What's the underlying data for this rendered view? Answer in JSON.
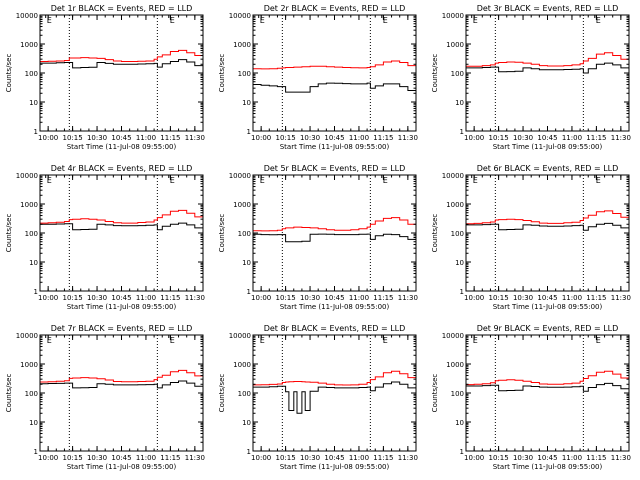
{
  "colors": {
    "events": "#000000",
    "lld": "#ff0000",
    "background": "#ffffff",
    "axis": "#000000"
  },
  "shared": {
    "xlabel": "Start Time (11-Jul-08 09:55:00)",
    "ylabel": "Counts/sec",
    "x_ticks": [
      "10:00",
      "10:15",
      "10:30",
      "10:45",
      "11:00",
      "11:15",
      "11:30"
    ],
    "y_ticks": [
      "1",
      "10",
      "100",
      "1000",
      "10000"
    ],
    "marker_label": "E",
    "marker_times": [
      "09:58:30",
      "11:14:00"
    ],
    "dotted_line_times": [
      "10:13:00",
      "11:07:00"
    ]
  },
  "chart_data": [
    {
      "type": "line",
      "title": "Det 1r BLACK = Events, RED = LLD",
      "xlim": [
        "09:55",
        "11:35"
      ],
      "ylim": [
        1,
        10000
      ],
      "yscale": "log",
      "x": [
        "09:55",
        "10:00",
        "10:05",
        "10:10",
        "10:13",
        "10:15",
        "10:20",
        "10:25",
        "10:30",
        "10:35",
        "10:40",
        "10:45",
        "10:50",
        "10:55",
        "11:00",
        "11:05",
        "11:07",
        "11:10",
        "11:15",
        "11:20",
        "11:25",
        "11:30",
        "11:35"
      ],
      "series": [
        {
          "name": "BLACK = Events",
          "values": [
            220,
            220,
            225,
            230,
            230,
            150,
            155,
            158,
            230,
            215,
            200,
            200,
            200,
            205,
            210,
            215,
            160,
            210,
            250,
            290,
            240,
            180,
            140
          ]
        },
        {
          "name": "RED = LLD",
          "values": [
            250,
            255,
            260,
            270,
            330,
            330,
            340,
            330,
            320,
            290,
            260,
            250,
            250,
            255,
            260,
            300,
            360,
            420,
            550,
            600,
            500,
            400,
            300
          ]
        }
      ]
    },
    {
      "type": "line",
      "title": "Det 2r BLACK = Events, RED = LLD",
      "xlim": [
        "09:55",
        "11:35"
      ],
      "ylim": [
        1,
        10000
      ],
      "yscale": "log",
      "x": [
        "09:55",
        "10:00",
        "10:05",
        "10:10",
        "10:13",
        "10:15",
        "10:20",
        "10:25",
        "10:30",
        "10:35",
        "10:40",
        "10:45",
        "10:50",
        "10:55",
        "11:00",
        "11:05",
        "11:07",
        "11:10",
        "11:15",
        "11:20",
        "11:25",
        "11:30",
        "11:35"
      ],
      "series": [
        {
          "name": "BLACK = Events",
          "values": [
            40,
            38,
            36,
            34,
            34,
            22,
            22,
            22,
            34,
            42,
            45,
            44,
            43,
            42,
            42,
            45,
            30,
            36,
            42,
            42,
            34,
            25,
            16
          ]
        },
        {
          "name": "RED = LLD",
          "values": [
            140,
            138,
            140,
            145,
            150,
            155,
            160,
            165,
            170,
            170,
            165,
            160,
            155,
            152,
            150,
            155,
            165,
            190,
            240,
            260,
            230,
            180,
            140
          ]
        }
      ]
    },
    {
      "type": "line",
      "title": "Det 3r BLACK = Events, RED = LLD",
      "xlim": [
        "09:55",
        "11:35"
      ],
      "ylim": [
        1,
        10000
      ],
      "yscale": "log",
      "x": [
        "09:55",
        "10:00",
        "10:05",
        "10:10",
        "10:13",
        "10:15",
        "10:20",
        "10:25",
        "10:30",
        "10:35",
        "10:40",
        "10:45",
        "10:50",
        "10:55",
        "11:00",
        "11:05",
        "11:07",
        "11:10",
        "11:15",
        "11:20",
        "11:25",
        "11:30",
        "11:35"
      ],
      "series": [
        {
          "name": "BLACK = Events",
          "values": [
            150,
            150,
            155,
            160,
            160,
            110,
            112,
            115,
            150,
            140,
            130,
            130,
            130,
            132,
            135,
            140,
            100,
            140,
            200,
            220,
            190,
            150,
            120
          ]
        },
        {
          "name": "RED = LLD",
          "values": [
            170,
            172,
            180,
            190,
            220,
            230,
            240,
            235,
            220,
            200,
            180,
            175,
            175,
            180,
            190,
            210,
            260,
            320,
            450,
            500,
            400,
            300,
            200
          ]
        }
      ]
    },
    {
      "type": "line",
      "title": "Det 4r BLACK = Events, RED = LLD",
      "xlim": [
        "09:55",
        "11:35"
      ],
      "ylim": [
        1,
        10000
      ],
      "yscale": "log",
      "x": [
        "09:55",
        "10:00",
        "10:05",
        "10:10",
        "10:13",
        "10:15",
        "10:20",
        "10:25",
        "10:30",
        "10:35",
        "10:40",
        "10:45",
        "10:50",
        "10:55",
        "11:00",
        "11:05",
        "11:07",
        "11:10",
        "11:15",
        "11:20",
        "11:25",
        "11:30",
        "11:35"
      ],
      "series": [
        {
          "name": "BLACK = Events",
          "values": [
            200,
            200,
            205,
            210,
            210,
            130,
            132,
            135,
            200,
            190,
            180,
            178,
            178,
            180,
            185,
            190,
            130,
            170,
            200,
            220,
            190,
            150,
            120
          ]
        },
        {
          "name": "RED = LLD",
          "values": [
            220,
            225,
            235,
            250,
            290,
            300,
            310,
            300,
            280,
            250,
            225,
            220,
            220,
            230,
            240,
            280,
            340,
            420,
            560,
            600,
            480,
            360,
            250
          ]
        }
      ]
    },
    {
      "type": "line",
      "title": "Det 5r BLACK = Events, RED = LLD",
      "xlim": [
        "09:55",
        "11:35"
      ],
      "ylim": [
        1,
        10000
      ],
      "yscale": "log",
      "x": [
        "09:55",
        "10:00",
        "10:05",
        "10:10",
        "10:13",
        "10:15",
        "10:20",
        "10:25",
        "10:30",
        "10:35",
        "10:40",
        "10:45",
        "10:50",
        "10:55",
        "11:00",
        "11:05",
        "11:07",
        "11:10",
        "11:15",
        "11:20",
        "11:25",
        "11:30",
        "11:35"
      ],
      "series": [
        {
          "name": "BLACK = Events",
          "values": [
            90,
            88,
            87,
            88,
            88,
            50,
            50,
            52,
            90,
            92,
            90,
            88,
            88,
            88,
            90,
            92,
            60,
            80,
            90,
            88,
            75,
            60,
            45
          ]
        },
        {
          "name": "RED = LLD",
          "values": [
            120,
            118,
            120,
            125,
            140,
            150,
            160,
            155,
            150,
            140,
            130,
            125,
            125,
            130,
            140,
            160,
            200,
            260,
            320,
            340,
            280,
            200,
            150
          ]
        }
      ]
    },
    {
      "type": "line",
      "title": "Det 6r BLACK = Events, RED = LLD",
      "xlim": [
        "09:55",
        "11:35"
      ],
      "ylim": [
        1,
        10000
      ],
      "yscale": "log",
      "x": [
        "09:55",
        "10:00",
        "10:05",
        "10:10",
        "10:13",
        "10:15",
        "10:20",
        "10:25",
        "10:30",
        "10:35",
        "10:40",
        "10:45",
        "10:50",
        "10:55",
        "11:00",
        "11:05",
        "11:07",
        "11:10",
        "11:15",
        "11:20",
        "11:25",
        "11:30",
        "11:35"
      ],
      "series": [
        {
          "name": "BLACK = Events",
          "values": [
            190,
            190,
            195,
            200,
            200,
            130,
            132,
            135,
            190,
            185,
            175,
            172,
            172,
            175,
            180,
            185,
            125,
            165,
            200,
            215,
            185,
            150,
            120
          ]
        },
        {
          "name": "RED = LLD",
          "values": [
            210,
            215,
            225,
            240,
            280,
            290,
            300,
            290,
            270,
            245,
            220,
            215,
            215,
            225,
            235,
            270,
            330,
            410,
            540,
            580,
            470,
            350,
            240
          ]
        }
      ]
    },
    {
      "type": "line",
      "title": "Det 7r BLACK = Events, RED = LLD",
      "xlim": [
        "09:55",
        "11:35"
      ],
      "ylim": [
        1,
        10000
      ],
      "yscale": "log",
      "x": [
        "09:55",
        "10:00",
        "10:05",
        "10:10",
        "10:13",
        "10:15",
        "10:20",
        "10:25",
        "10:30",
        "10:35",
        "10:40",
        "10:45",
        "10:50",
        "10:55",
        "11:00",
        "11:05",
        "11:07",
        "11:10",
        "11:15",
        "11:20",
        "11:25",
        "11:30",
        "11:35"
      ],
      "series": [
        {
          "name": "BLACK = Events",
          "values": [
            210,
            212,
            215,
            220,
            220,
            150,
            152,
            155,
            210,
            200,
            190,
            190,
            190,
            192,
            195,
            200,
            150,
            190,
            230,
            260,
            220,
            170,
            130
          ]
        },
        {
          "name": "RED = LLD",
          "values": [
            240,
            245,
            255,
            265,
            320,
            330,
            340,
            330,
            310,
            280,
            250,
            245,
            245,
            250,
            255,
            290,
            350,
            410,
            540,
            600,
            500,
            390,
            290
          ]
        }
      ]
    },
    {
      "type": "line",
      "title": "Det 8r BLACK = Events, RED = LLD",
      "xlim": [
        "09:55",
        "11:35"
      ],
      "ylim": [
        1,
        10000
      ],
      "yscale": "log",
      "x": [
        "09:55",
        "10:00",
        "10:05",
        "10:10",
        "10:13",
        "10:15",
        "10:17",
        "10:20",
        "10:22",
        "10:25",
        "10:27",
        "10:30",
        "10:35",
        "10:40",
        "10:45",
        "10:50",
        "10:55",
        "11:00",
        "11:05",
        "11:07",
        "11:10",
        "11:15",
        "11:20",
        "11:25",
        "11:30",
        "11:35"
      ],
      "series": [
        {
          "name": "BLACK = Events",
          "values": [
            160,
            160,
            165,
            170,
            170,
            110,
            25,
            110,
            20,
            110,
            25,
            115,
            160,
            155,
            150,
            150,
            150,
            155,
            160,
            120,
            160,
            210,
            240,
            200,
            150,
            110
          ]
        },
        {
          "name": "RED = LLD",
          "values": [
            190,
            192,
            198,
            205,
            230,
            240,
            245,
            250,
            250,
            245,
            240,
            235,
            220,
            200,
            190,
            188,
            190,
            200,
            230,
            290,
            360,
            500,
            560,
            460,
            340,
            240
          ]
        }
      ]
    },
    {
      "type": "line",
      "title": "Det 9r BLACK = Events, RED = LLD",
      "xlim": [
        "09:55",
        "11:35"
      ],
      "ylim": [
        1,
        10000
      ],
      "yscale": "log",
      "x": [
        "09:55",
        "10:00",
        "10:05",
        "10:10",
        "10:13",
        "10:15",
        "10:20",
        "10:25",
        "10:30",
        "10:35",
        "10:40",
        "10:45",
        "10:50",
        "10:55",
        "11:00",
        "11:05",
        "11:07",
        "11:10",
        "11:15",
        "11:20",
        "11:25",
        "11:30",
        "11:35"
      ],
      "series": [
        {
          "name": "BLACK = Events",
          "values": [
            175,
            175,
            180,
            185,
            185,
            120,
            122,
            125,
            175,
            168,
            160,
            158,
            158,
            160,
            165,
            170,
            115,
            155,
            195,
            215,
            180,
            140,
            110
          ]
        },
        {
          "name": "RED = LLD",
          "values": [
            195,
            200,
            210,
            225,
            265,
            275,
            285,
            275,
            255,
            230,
            205,
            200,
            200,
            210,
            220,
            255,
            315,
            395,
            520,
            560,
            450,
            330,
            225
          ]
        }
      ]
    }
  ]
}
